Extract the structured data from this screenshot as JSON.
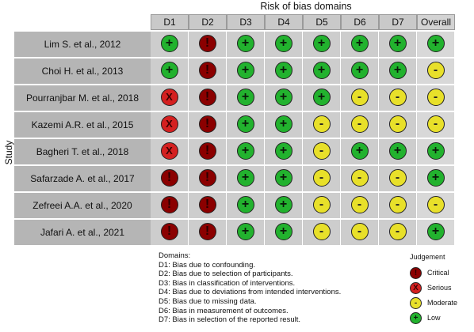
{
  "title": "Risk of bias domains",
  "y_axis_label": "Study",
  "domain_headers": [
    "D1",
    "D2",
    "D3",
    "D4",
    "D5",
    "D6",
    "D7",
    "Overall"
  ],
  "judgements": {
    "critical": {
      "label": "Critical",
      "symbol": "!",
      "color": "#8b0000",
      "text_color": "#2a0000"
    },
    "serious": {
      "label": "Serious",
      "symbol": "X",
      "color": "#d42020",
      "text_color": "#3a0000"
    },
    "moderate": {
      "label": "Moderate",
      "symbol": "-",
      "color": "#e8e02a",
      "text_color": "#222222"
    },
    "low": {
      "label": "Low",
      "symbol": "+",
      "color": "#22b22e",
      "text_color": "#0a1a0a"
    }
  },
  "studies": [
    {
      "name": "Lim S. et al., 2012",
      "ratings": [
        "low",
        "critical",
        "low",
        "low",
        "low",
        "low",
        "low",
        "low"
      ]
    },
    {
      "name": "Choi H. et al., 2013",
      "ratings": [
        "low",
        "critical",
        "low",
        "low",
        "low",
        "low",
        "low",
        "moderate"
      ]
    },
    {
      "name": "Pourranjbar M. et al., 2018",
      "ratings": [
        "serious",
        "critical",
        "low",
        "low",
        "low",
        "moderate",
        "moderate",
        "moderate"
      ]
    },
    {
      "name": "Kazemi A.R. et al., 2015",
      "ratings": [
        "serious",
        "critical",
        "low",
        "low",
        "moderate",
        "moderate",
        "moderate",
        "moderate"
      ]
    },
    {
      "name": "Bagheri T. et al., 2018",
      "ratings": [
        "serious",
        "critical",
        "low",
        "low",
        "moderate",
        "low",
        "low",
        "low"
      ]
    },
    {
      "name": "Safarzade A. et al., 2017",
      "ratings": [
        "critical",
        "critical",
        "low",
        "low",
        "moderate",
        "moderate",
        "moderate",
        "low"
      ]
    },
    {
      "name": "Zefreei A.A. et al., 2020",
      "ratings": [
        "critical",
        "critical",
        "low",
        "low",
        "moderate",
        "moderate",
        "moderate",
        "moderate"
      ]
    },
    {
      "name": "Jafari A. et al., 2021",
      "ratings": [
        "critical",
        "critical",
        "low",
        "low",
        "moderate",
        "moderate",
        "moderate",
        "low"
      ]
    }
  ],
  "domains_legend": {
    "title": "Domains:",
    "items": [
      "D1: Bias due to confounding.",
      "D2: Bias due to selection of participants.",
      "D3: Bias in classification of interventions.",
      "D4: Bias due to deviations from intended interventions.",
      "D5: Bias due to missing data.",
      "D6: Bias in measurement of outcomes.",
      "D7: Bias in selection of the reported result."
    ]
  },
  "judgement_legend": {
    "title": "Judgement",
    "order": [
      "critical",
      "serious",
      "moderate",
      "low"
    ]
  }
}
